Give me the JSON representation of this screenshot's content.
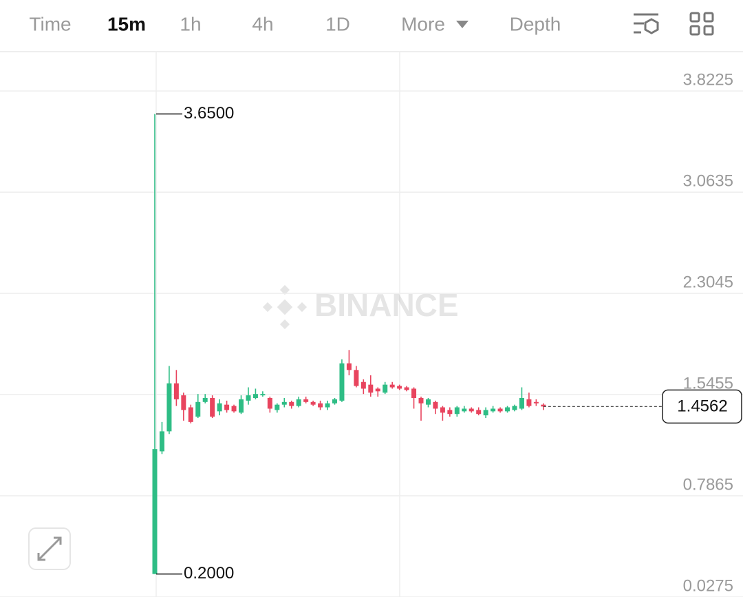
{
  "toolbar": {
    "tabs": [
      "Time",
      "15m",
      "1h",
      "4h",
      "1D",
      "More",
      "Depth"
    ],
    "active": 1
  },
  "chart_data": {
    "type": "candlestick",
    "watermark": "BINANCE",
    "up_color": "#2ebd85",
    "down_color": "#e8445e",
    "ylim": [
      0.0275,
      4.1175
    ],
    "yticks": [
      0.0275,
      0.7865,
      1.5455,
      2.3045,
      3.0635,
      3.8225
    ],
    "grid": true,
    "open": [
      0.2,
      1.12,
      1.27,
      1.63,
      1.54,
      1.45,
      1.38,
      1.49,
      1.52,
      1.42,
      1.47,
      1.46,
      1.41,
      1.5,
      1.52,
      1.54,
      1.52,
      1.43,
      1.47,
      1.49,
      1.46,
      1.51,
      1.49,
      1.48,
      1.45,
      1.48,
      1.5,
      1.78,
      1.73,
      1.64,
      1.62,
      1.59,
      1.56,
      1.62,
      1.61,
      1.6,
      1.59,
      1.52,
      1.47,
      1.49,
      1.45,
      1.43,
      1.4,
      1.42,
      1.44,
      1.43,
      1.39,
      1.42,
      1.44,
      1.42,
      1.43,
      1.44,
      1.51,
      1.49,
      1.47
    ],
    "high": [
      3.65,
      1.34,
      1.76,
      1.73,
      1.56,
      1.47,
      1.55,
      1.55,
      1.54,
      1.51,
      1.5,
      1.47,
      1.54,
      1.6,
      1.59,
      1.57,
      1.53,
      1.48,
      1.52,
      1.5,
      1.53,
      1.53,
      1.5,
      1.5,
      1.5,
      1.52,
      1.81,
      1.88,
      1.76,
      1.66,
      1.69,
      1.6,
      1.64,
      1.64,
      1.62,
      1.61,
      1.6,
      1.53,
      1.52,
      1.5,
      1.46,
      1.45,
      1.46,
      1.46,
      1.45,
      1.45,
      1.45,
      1.46,
      1.45,
      1.46,
      1.47,
      1.6,
      1.56,
      1.51,
      1.48
    ],
    "low": [
      0.2,
      1.1,
      1.25,
      1.46,
      1.35,
      1.33,
      1.37,
      1.48,
      1.37,
      1.39,
      1.41,
      1.41,
      1.4,
      1.47,
      1.51,
      1.53,
      1.41,
      1.41,
      1.45,
      1.44,
      1.45,
      1.48,
      1.46,
      1.43,
      1.43,
      1.47,
      1.49,
      1.69,
      1.6,
      1.55,
      1.53,
      1.53,
      1.55,
      1.59,
      1.58,
      1.57,
      1.44,
      1.35,
      1.45,
      1.4,
      1.35,
      1.38,
      1.38,
      1.41,
      1.41,
      1.39,
      1.37,
      1.41,
      1.41,
      1.41,
      1.42,
      1.43,
      1.45,
      1.46,
      1.43
    ],
    "close": [
      1.137,
      1.27,
      1.63,
      1.51,
      1.43,
      1.34,
      1.49,
      1.52,
      1.38,
      1.48,
      1.43,
      1.42,
      1.51,
      1.54,
      1.55,
      1.55,
      1.44,
      1.47,
      1.49,
      1.46,
      1.51,
      1.49,
      1.47,
      1.45,
      1.48,
      1.51,
      1.78,
      1.73,
      1.61,
      1.59,
      1.56,
      1.57,
      1.62,
      1.6,
      1.59,
      1.58,
      1.52,
      1.48,
      1.51,
      1.44,
      1.41,
      1.4,
      1.45,
      1.44,
      1.42,
      1.4,
      1.43,
      1.44,
      1.42,
      1.45,
      1.46,
      1.52,
      1.46,
      1.48,
      1.4562
    ],
    "max_marker": {
      "value": 3.65,
      "label": "3.6500"
    },
    "min_marker": {
      "value": 0.2,
      "label": "0.2000"
    },
    "last_price": 1.4562
  }
}
